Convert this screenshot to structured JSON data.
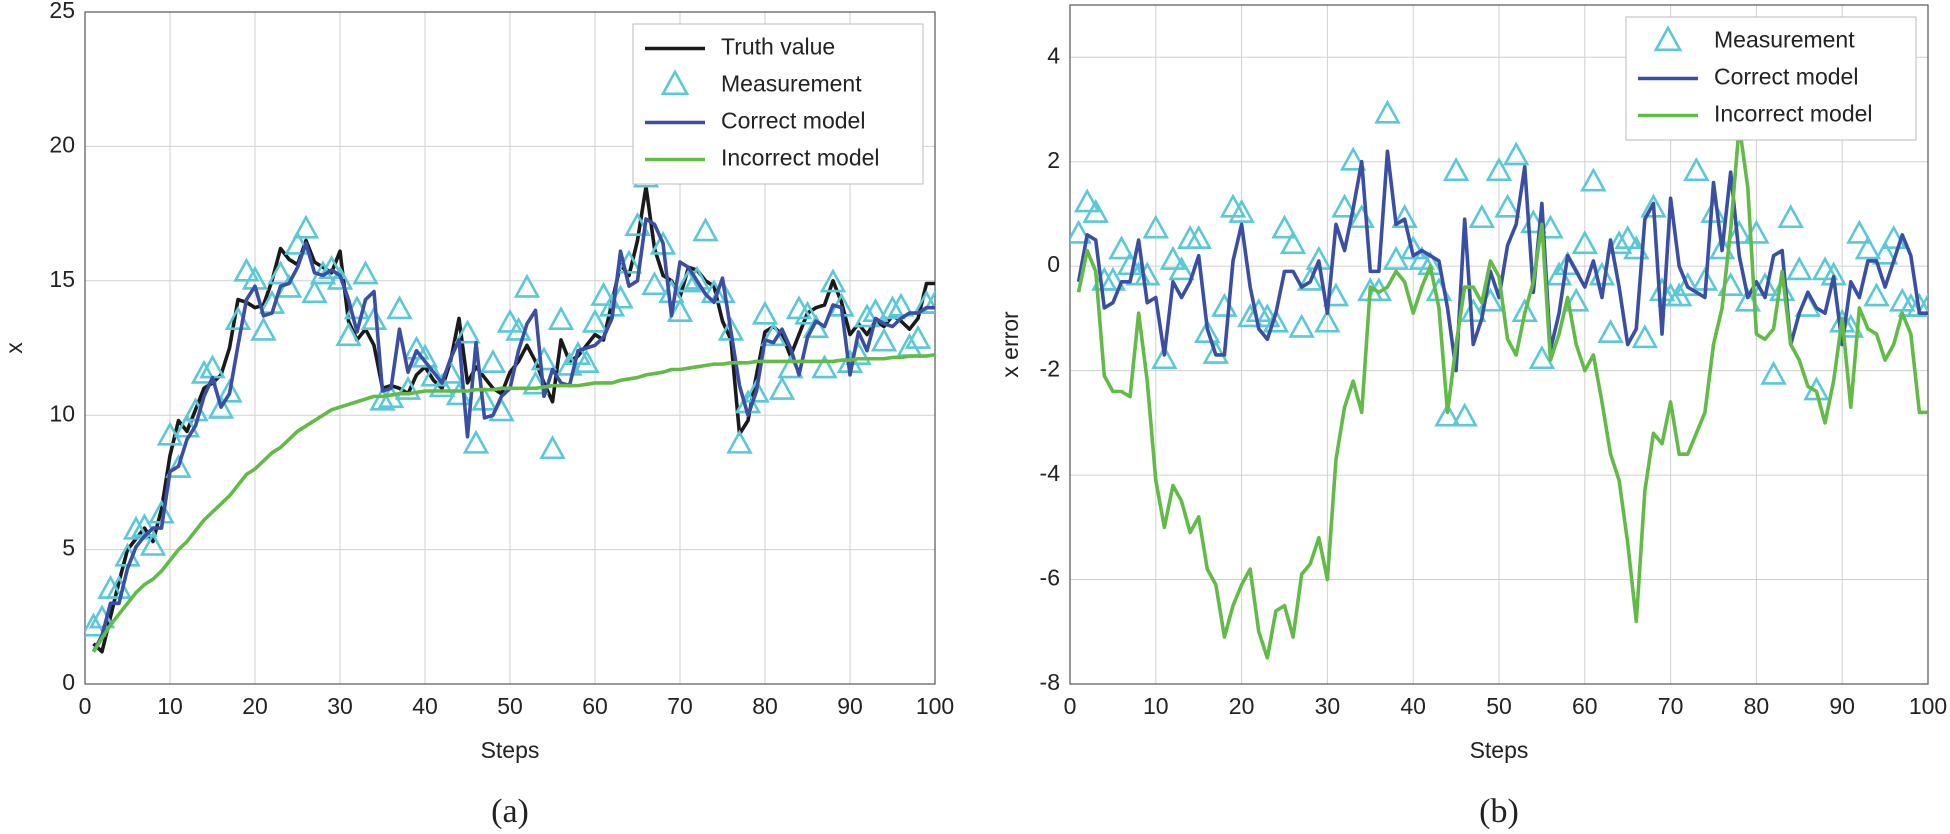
{
  "chart_data": [
    {
      "type": "line",
      "caption": "(a)",
      "xlabel": "Steps",
      "ylabel": "x",
      "xlim": [
        0,
        100
      ],
      "xticks": [
        0,
        10,
        20,
        30,
        40,
        50,
        60,
        70,
        80,
        90,
        100
      ],
      "ylim": [
        0,
        25
      ],
      "yticks": [
        0,
        5,
        10,
        15,
        20,
        25
      ],
      "grid": true,
      "legend": "upper right",
      "x": [
        1,
        2,
        3,
        4,
        5,
        6,
        7,
        8,
        9,
        10,
        11,
        12,
        13,
        14,
        15,
        16,
        17,
        18,
        19,
        20,
        21,
        22,
        23,
        24,
        25,
        26,
        27,
        28,
        29,
        30,
        31,
        32,
        33,
        34,
        35,
        36,
        37,
        38,
        39,
        40,
        41,
        42,
        43,
        44,
        45,
        46,
        47,
        48,
        49,
        50,
        51,
        52,
        53,
        54,
        55,
        56,
        57,
        58,
        59,
        60,
        61,
        62,
        63,
        64,
        65,
        66,
        67,
        68,
        69,
        70,
        71,
        72,
        73,
        74,
        75,
        76,
        77,
        78,
        79,
        80,
        81,
        82,
        83,
        84,
        85,
        86,
        87,
        88,
        89,
        90,
        91,
        92,
        93,
        94,
        95,
        96,
        97,
        98,
        99,
        100
      ],
      "series": [
        {
          "name": "Truth value",
          "color": "#1a1a1a",
          "style": "line",
          "values": [
            1.5,
            1.2,
            2.5,
            3.8,
            5.0,
            5.4,
            5.8,
            5.3,
            6.5,
            8.5,
            9.8,
            9.4,
            10.2,
            11.0,
            11.2,
            11.5,
            12.5,
            14.3,
            14.2,
            14.0,
            14.1,
            15.0,
            16.2,
            15.8,
            15.6,
            16.5,
            15.7,
            15.5,
            15.3,
            16.1,
            13.5,
            12.8,
            13.2,
            12.6,
            11.0,
            11.1,
            11.0,
            10.8,
            11.5,
            11.8,
            11.3,
            11.0,
            12.0,
            13.6,
            11.2,
            11.8,
            11.4,
            11.0,
            10.8,
            11.6,
            12.0,
            12.6,
            12.0,
            11.2,
            10.5,
            12.8,
            12.0,
            12.2,
            12.6,
            13.0,
            12.8,
            14.2,
            15.6,
            15.2,
            16.5,
            18.5,
            16.2,
            15.2,
            15.0,
            14.4,
            15.5,
            15.4,
            15.0,
            14.8,
            13.5,
            12.8,
            9.3,
            9.8,
            11.5,
            13.1,
            13.3,
            13.0,
            12.2,
            13.0,
            13.8,
            14.0,
            14.1,
            15.0,
            14.2,
            13.0,
            13.4,
            13.0,
            13.5,
            13.3,
            13.7,
            13.5,
            13.2,
            13.6,
            14.9,
            14.9
          ]
        },
        {
          "name": "Measurement",
          "color": "#5bc8d8",
          "style": "marker",
          "values": [
            2.1,
            2.4,
            3.5,
            3.5,
            4.7,
            5.7,
            5.8,
            5.1,
            6.3,
            9.2,
            8.0,
            9.5,
            10.1,
            11.5,
            11.7,
            10.2,
            10.8,
            13.5,
            15.3,
            15.0,
            13.1,
            14.1,
            15.2,
            14.7,
            16.3,
            16.9,
            14.5,
            15.2,
            15.4,
            15.0,
            12.9,
            13.9,
            15.2,
            13.5,
            10.5,
            10.6,
            13.9,
            10.9,
            12.4,
            12.1,
            11.4,
            11.0,
            11.5,
            10.7,
            13.0,
            8.9,
            10.5,
            11.9,
            10.1,
            13.4,
            13.1,
            14.7,
            11.1,
            12.0,
            8.7,
            13.5,
            11.8,
            12.2,
            11.9,
            13.4,
            14.4,
            14.0,
            14.3,
            15.6,
            17.0,
            18.8,
            14.8,
            16.3,
            14.5,
            13.8,
            14.9,
            15.0,
            16.8,
            14.5,
            14.5,
            13.1,
            8.9,
            10.4,
            10.8,
            13.7,
            12.9,
            10.9,
            11.7,
            13.9,
            13.7,
            13.2,
            11.7,
            14.9,
            14.0,
            11.9,
            12.2,
            13.6,
            13.8,
            12.7,
            13.9,
            14.0,
            12.5,
            12.8,
            14.1,
            14.1
          ]
        },
        {
          "name": "Correct model",
          "color": "#3a4fa3",
          "style": "line",
          "values": [
            1.2,
            1.8,
            3.0,
            3.0,
            4.3,
            5.1,
            5.5,
            5.8,
            5.8,
            7.9,
            8.1,
            9.1,
            9.6,
            10.7,
            11.4,
            10.3,
            10.8,
            12.6,
            14.3,
            14.8,
            13.7,
            13.8,
            14.8,
            14.9,
            15.5,
            16.4,
            15.3,
            15.2,
            15.4,
            15.2,
            14.3,
            13.1,
            14.3,
            14.6,
            10.9,
            11.0,
            13.2,
            11.6,
            12.4,
            12.0,
            11.6,
            11.2,
            12.1,
            12.8,
            9.2,
            12.7,
            9.9,
            10.0,
            10.7,
            11.0,
            12.4,
            13.4,
            13.9,
            10.7,
            11.7,
            11.2,
            11.1,
            12.4,
            12.5,
            12.6,
            12.9,
            13.6,
            16.1,
            14.8,
            15.0,
            17.3,
            17.1,
            16.4,
            13.7,
            15.7,
            15.5,
            15.0,
            14.5,
            14.2,
            15.1,
            13.1,
            11.1,
            10.0,
            10.9,
            12.8,
            12.7,
            13.2,
            12.5,
            11.5,
            12.9,
            13.5,
            13.3,
            14.1,
            14.0,
            11.5,
            13.1,
            12.4,
            13.6,
            13.4,
            13.3,
            13.6,
            13.8,
            13.8,
            14.0,
            14.0
          ]
        },
        {
          "name": "Incorrect model",
          "color": "#62bb46",
          "style": "line",
          "values": [
            1.2,
            1.7,
            2.2,
            2.6,
            3.0,
            3.4,
            3.7,
            3.9,
            4.2,
            4.6,
            5.0,
            5.3,
            5.7,
            6.1,
            6.4,
            6.7,
            7.0,
            7.4,
            7.8,
            8.0,
            8.3,
            8.6,
            8.8,
            9.1,
            9.4,
            9.6,
            9.8,
            10.0,
            10.2,
            10.3,
            10.4,
            10.5,
            10.6,
            10.7,
            10.7,
            10.75,
            10.8,
            10.8,
            10.85,
            10.9,
            10.9,
            10.9,
            10.9,
            10.9,
            10.9,
            10.95,
            10.95,
            10.95,
            11.0,
            11.0,
            11.0,
            11.0,
            11.0,
            11.05,
            11.1,
            11.1,
            11.1,
            11.1,
            11.15,
            11.2,
            11.2,
            11.2,
            11.3,
            11.35,
            11.4,
            11.5,
            11.55,
            11.6,
            11.7,
            11.7,
            11.75,
            11.8,
            11.85,
            11.9,
            11.9,
            11.95,
            11.95,
            11.95,
            12.0,
            12.0,
            12.0,
            12.0,
            12.0,
            12.0,
            12.0,
            12.0,
            12.0,
            12.0,
            12.05,
            12.05,
            12.1,
            12.1,
            12.1,
            12.1,
            12.15,
            12.15,
            12.2,
            12.2,
            12.2,
            12.25
          ]
        }
      ]
    },
    {
      "type": "line",
      "caption": "(b)",
      "xlabel": "Steps",
      "ylabel": "x error",
      "xlim": [
        0,
        100
      ],
      "xticks": [
        0,
        10,
        20,
        30,
        40,
        50,
        60,
        70,
        80,
        90,
        100
      ],
      "ylim": [
        -8,
        5
      ],
      "yticks": [
        -8,
        -6,
        -4,
        -2,
        0,
        2,
        4
      ],
      "grid": true,
      "legend": "upper right",
      "x": [
        1,
        2,
        3,
        4,
        5,
        6,
        7,
        8,
        9,
        10,
        11,
        12,
        13,
        14,
        15,
        16,
        17,
        18,
        19,
        20,
        21,
        22,
        23,
        24,
        25,
        26,
        27,
        28,
        29,
        30,
        31,
        32,
        33,
        34,
        35,
        36,
        37,
        38,
        39,
        40,
        41,
        42,
        43,
        44,
        45,
        46,
        47,
        48,
        49,
        50,
        51,
        52,
        53,
        54,
        55,
        56,
        57,
        58,
        59,
        60,
        61,
        62,
        63,
        64,
        65,
        66,
        67,
        68,
        69,
        70,
        71,
        72,
        73,
        74,
        75,
        76,
        77,
        78,
        79,
        80,
        81,
        82,
        83,
        84,
        85,
        86,
        87,
        88,
        89,
        90,
        91,
        92,
        93,
        94,
        95,
        96,
        97,
        98,
        99,
        100
      ],
      "series": [
        {
          "name": "Measurement",
          "color": "#5bc8d8",
          "style": "marker",
          "values": [
            0.6,
            1.2,
            1.0,
            -0.3,
            -0.3,
            0.3,
            0.0,
            -0.2,
            -0.2,
            0.7,
            -1.8,
            0.1,
            -0.1,
            0.5,
            0.5,
            -1.3,
            -1.7,
            -0.8,
            1.1,
            1.0,
            -1.0,
            -0.9,
            -1.0,
            -1.1,
            0.7,
            0.4,
            -1.2,
            -0.3,
            0.1,
            -1.1,
            -0.6,
            1.1,
            2.0,
            0.9,
            -0.5,
            -0.5,
            2.9,
            0.1,
            0.9,
            0.3,
            0.1,
            0.0,
            -0.5,
            -2.9,
            1.8,
            -2.9,
            -0.9,
            0.9,
            -0.7,
            1.8,
            1.1,
            2.1,
            -0.9,
            0.8,
            -1.8,
            0.7,
            -0.2,
            0.0,
            -0.7,
            0.4,
            1.6,
            -0.2,
            -1.3,
            0.4,
            0.5,
            0.3,
            -1.4,
            1.1,
            -0.5,
            -0.6,
            -0.6,
            -0.4,
            1.8,
            -0.3,
            1.0,
            0.3,
            -0.4,
            0.6,
            -0.7,
            0.6,
            -0.4,
            -2.1,
            -0.5,
            0.9,
            -0.1,
            -0.8,
            -2.4,
            -0.1,
            -0.2,
            -1.1,
            -1.2,
            0.6,
            0.3,
            -0.6,
            0.2,
            0.5,
            -0.7,
            -0.8,
            -0.8,
            -0.8
          ]
        },
        {
          "name": "Correct model",
          "color": "#3a4fa3",
          "style": "line",
          "values": [
            -0.3,
            0.6,
            0.5,
            -0.8,
            -0.7,
            -0.3,
            -0.3,
            0.5,
            -0.7,
            -0.6,
            -1.7,
            -0.3,
            -0.6,
            -0.3,
            0.2,
            -1.2,
            -1.7,
            -1.7,
            0.1,
            0.8,
            -0.4,
            -1.2,
            -1.4,
            -0.9,
            -0.1,
            -0.1,
            -0.4,
            -0.3,
            0.1,
            -0.9,
            0.8,
            0.3,
            1.1,
            2.0,
            -0.1,
            -0.1,
            2.2,
            0.8,
            0.9,
            0.2,
            0.3,
            0.2,
            0.1,
            -0.8,
            -2.0,
            0.9,
            -1.5,
            -1.0,
            -0.1,
            -0.6,
            0.4,
            0.8,
            1.9,
            -0.5,
            1.2,
            -1.6,
            -0.9,
            0.2,
            -0.1,
            -0.4,
            0.1,
            -0.6,
            0.5,
            -0.4,
            -1.5,
            -1.2,
            0.9,
            1.2,
            -1.3,
            1.3,
            0.0,
            -0.4,
            -0.5,
            -0.6,
            1.6,
            0.3,
            1.8,
            0.2,
            -0.6,
            -0.3,
            -0.6,
            0.2,
            0.3,
            -1.5,
            -0.9,
            -0.5,
            -0.8,
            -0.9,
            -0.2,
            -1.5,
            -0.3,
            -0.6,
            0.1,
            0.1,
            -0.4,
            0.1,
            0.6,
            0.2,
            -0.9,
            -0.9
          ]
        },
        {
          "name": "Incorrect model",
          "color": "#62bb46",
          "style": "line",
          "values": [
            -0.5,
            0.3,
            -0.1,
            -2.1,
            -2.4,
            -2.4,
            -2.5,
            -0.9,
            -2.2,
            -4.1,
            -5.0,
            -4.2,
            -4.5,
            -5.1,
            -4.8,
            -5.8,
            -6.1,
            -7.1,
            -6.5,
            -6.1,
            -5.8,
            -7.0,
            -7.5,
            -6.6,
            -6.5,
            -7.1,
            -5.9,
            -5.7,
            -5.2,
            -6.0,
            -3.7,
            -2.7,
            -2.2,
            -2.8,
            -0.4,
            -0.5,
            -0.4,
            -0.1,
            -0.3,
            -0.9,
            -0.4,
            0.0,
            -0.8,
            -2.8,
            -1.5,
            -0.4,
            -0.4,
            -0.7,
            0.1,
            -0.2,
            -1.4,
            -1.7,
            -0.9,
            -0.3,
            0.8,
            -1.8,
            -1.3,
            -0.6,
            -1.5,
            -2.0,
            -1.7,
            -2.6,
            -3.6,
            -4.1,
            -5.3,
            -6.8,
            -4.3,
            -3.2,
            -3.4,
            -2.6,
            -3.6,
            -3.6,
            -3.2,
            -2.8,
            -1.5,
            -0.8,
            0.7,
            2.7,
            1.5,
            -1.3,
            -1.4,
            -1.2,
            -0.1,
            -1.5,
            -1.8,
            -2.3,
            -2.4,
            -3.0,
            -2.2,
            -1.0,
            -2.7,
            -0.8,
            -1.2,
            -1.3,
            -1.8,
            -1.5,
            -0.9,
            -1.3,
            -2.8,
            -2.8
          ]
        }
      ]
    }
  ]
}
